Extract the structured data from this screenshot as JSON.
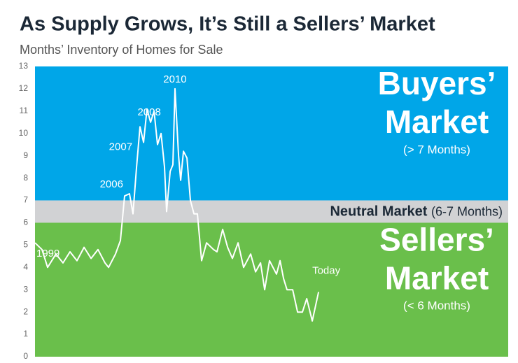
{
  "chart_data": {
    "type": "line",
    "title": "As Supply Grows, It’s Still a Sellers’ Market",
    "subtitle": "Months’ Inventory of Homes for Sale",
    "ylim": [
      0,
      13
    ],
    "yticks": [
      0,
      1,
      2,
      3,
      4,
      5,
      6,
      7,
      8,
      9,
      10,
      11,
      12,
      13
    ],
    "xlim": [
      1999,
      2037.4
    ],
    "color": "#ffffff",
    "zones": [
      {
        "from": 7,
        "to": 13,
        "color": "#00a6e8",
        "title_lines": [
          "Buyers’",
          "Market"
        ],
        "note": "(> 7 Months)"
      },
      {
        "from": 6,
        "to": 7,
        "color": "#d1d2d4",
        "title_lines": [
          "Neutral Market"
        ],
        "note": "(6-7 Months)"
      },
      {
        "from": 0,
        "to": 6,
        "color": "#6abf4b",
        "title_lines": [
          "Sellers’",
          "Market"
        ],
        "note": "(< 6 Months)"
      }
    ],
    "x": [
      1999.0,
      1999.57,
      2000.02,
      2000.7,
      2001.27,
      2001.84,
      2002.41,
      2002.98,
      2003.55,
      2004.11,
      2004.68,
      2004.97,
      2005.53,
      2005.93,
      2006.27,
      2006.67,
      2006.95,
      2007.24,
      2007.52,
      2007.81,
      2008.09,
      2008.38,
      2008.66,
      2008.94,
      2009.23,
      2009.51,
      2009.68,
      2009.97,
      2010.19,
      2010.36,
      2010.65,
      2010.82,
      2011.05,
      2011.33,
      2011.61,
      2011.9,
      2012.18,
      2012.52,
      2012.92,
      2013.49,
      2013.77,
      2014.23,
      2014.63,
      2015.02,
      2015.48,
      2015.93,
      2016.5,
      2016.9,
      2017.3,
      2017.64,
      2018.03,
      2018.6,
      2018.89,
      2019.17,
      2019.45,
      2019.91,
      2020.31,
      2020.7,
      2021.05,
      2021.5,
      2022.01
    ],
    "values": [
      5.1,
      4.8,
      4.0,
      4.6,
      4.2,
      4.7,
      4.3,
      4.9,
      4.4,
      4.8,
      4.2,
      4.0,
      4.6,
      5.2,
      7.2,
      7.3,
      6.4,
      8.5,
      10.3,
      9.6,
      11.1,
      10.5,
      11.0,
      9.5,
      10.0,
      8.5,
      6.5,
      8.3,
      8.6,
      12.0,
      9.0,
      7.9,
      9.2,
      8.9,
      7.0,
      6.4,
      6.4,
      4.3,
      5.1,
      4.8,
      4.7,
      5.7,
      4.9,
      4.4,
      5.1,
      4.0,
      4.6,
      3.8,
      4.2,
      3.0,
      4.3,
      3.7,
      4.3,
      3.5,
      3.0,
      3.0,
      2.0,
      2.0,
      2.6,
      1.6,
      2.9
    ],
    "annotations": [
      {
        "text": "1999",
        "x": 1999.0
      },
      {
        "text": "2006",
        "x": 2006.27
      },
      {
        "text": "2007",
        "x": 2007.24
      },
      {
        "text": "2008",
        "x": 2008.38
      },
      {
        "text": "2010",
        "x": 2010.36
      },
      {
        "text": "Today",
        "x": 2022.01
      }
    ]
  }
}
